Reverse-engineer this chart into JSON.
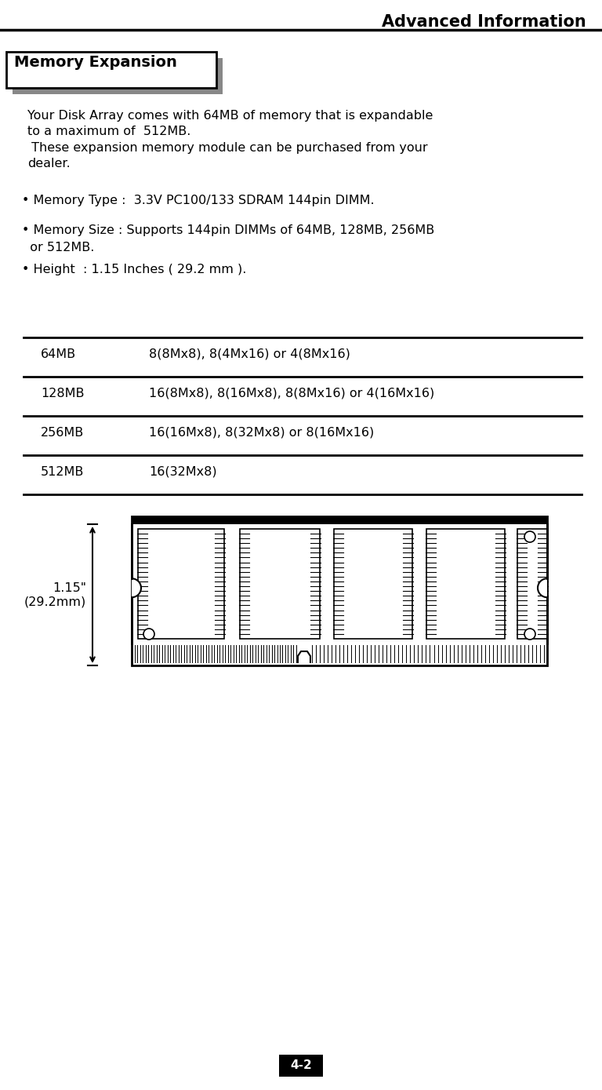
{
  "page_title": "Advanced Information",
  "section_title": "Memory Expansion",
  "body_text_1": "Your Disk Array comes with 64MB of memory that is expandable\nto a maximum of  512MB.\n These expansion memory module can be purchased from your\ndealer.",
  "bullet1": "• Memory Type :  3.3V PC100/133 SDRAM 144pin DIMM.",
  "bullet2_line1": "• Memory Size : Supports 144pin DIMMs of 64MB, 128MB, 256MB",
  "bullet2_line2": "  or 512MB.",
  "bullet3": "• Height  : 1.15 Inches ( 29.2 mm ).",
  "table_rows": [
    [
      "64MB",
      "8(8Mx8), 8(4Mx16) or 4(8Mx16)"
    ],
    [
      "128MB",
      "16(8Mx8), 8(16Mx8), 8(8Mx16) or 4(16Mx16)"
    ],
    [
      "256MB",
      "16(16Mx8), 8(32Mx8) or 8(16Mx16)"
    ],
    [
      "512MB",
      "16(32Mx8)"
    ]
  ],
  "dim_label": "1.15\"\n(29.2mm)",
  "page_number": "4-2",
  "bg_color": "#ffffff",
  "text_color": "#000000",
  "shadow_color": "#888888"
}
